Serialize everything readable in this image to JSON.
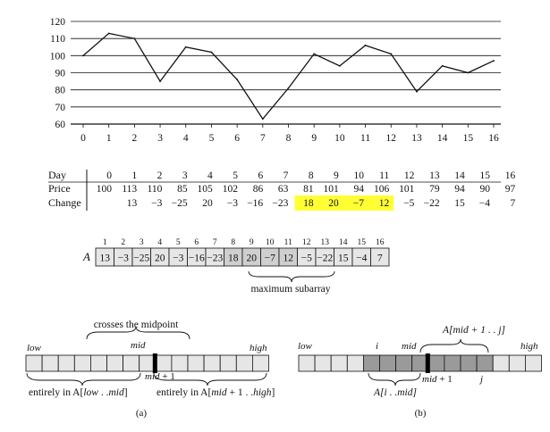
{
  "chart_data": {
    "type": "line",
    "x": [
      0,
      1,
      2,
      3,
      4,
      5,
      6,
      7,
      8,
      9,
      10,
      11,
      12,
      13,
      14,
      15,
      16
    ],
    "values": [
      100,
      113,
      110,
      85,
      105,
      102,
      86,
      63,
      81,
      101,
      94,
      106,
      101,
      79,
      94,
      90,
      97
    ],
    "xlim": [
      0,
      16
    ],
    "ylim": [
      60,
      120
    ],
    "yticks": [
      60,
      70,
      80,
      90,
      100,
      110,
      120
    ],
    "xticks": [
      0,
      1,
      2,
      3,
      4,
      5,
      6,
      7,
      8,
      9,
      10,
      11,
      12,
      13,
      14,
      15,
      16
    ],
    "grid": "horizontal",
    "xlabel": "",
    "ylabel": "",
    "title": ""
  },
  "table": {
    "row_labels": [
      "Day",
      "Price",
      "Change"
    ],
    "days": [
      "0",
      "1",
      "2",
      "3",
      "4",
      "5",
      "6",
      "7",
      "8",
      "9",
      "10",
      "11",
      "12",
      "13",
      "14",
      "15",
      "16"
    ],
    "prices": [
      "100",
      "113",
      "110",
      "85",
      "105",
      "102",
      "86",
      "63",
      "81",
      "101",
      "94",
      "106",
      "101",
      "79",
      "94",
      "90",
      "97"
    ],
    "changes": [
      "",
      "13",
      "−3",
      "−25",
      "20",
      "−3",
      "−16",
      "−23",
      "18",
      "20",
      "−7",
      "12",
      "−5",
      "−22",
      "15",
      "−4",
      "7"
    ],
    "highlight_range": [
      8,
      11
    ],
    "highlight_color": "#ffff33"
  },
  "array_fig": {
    "name": "A",
    "indices": [
      "1",
      "2",
      "3",
      "4",
      "5",
      "6",
      "7",
      "8",
      "9",
      "10",
      "11",
      "12",
      "13",
      "14",
      "15",
      "16"
    ],
    "values": [
      "13",
      "−3",
      "−25",
      "20",
      "−3",
      "−16",
      "−23",
      "18",
      "20",
      "−7",
      "12",
      "−5",
      "−22",
      "15",
      "−4",
      "7"
    ],
    "highlight_range": [
      8,
      11
    ],
    "cell_fill": "#e6e6e6",
    "highlight_fill": "#cfcfcf",
    "caption": "maximum subarray"
  },
  "panel_a": {
    "top_label": "crosses the midpoint",
    "low": "low",
    "mid": "mid",
    "high": "high",
    "mid_plus": "mid + 1",
    "left_label_prefix": "entirely in A[",
    "left_label_low": "low",
    "left_label_sep": " . .",
    "left_label_mid": "mid",
    "left_label_suffix": "]",
    "right_label_prefix": "entirely in A[",
    "right_label_mid": "mid",
    "right_label_rest": " + 1 . .",
    "right_label_high": "high",
    "right_label_suffix": "]",
    "caption": "(a)"
  },
  "panel_b": {
    "low": "low",
    "i": "i",
    "mid": "mid",
    "high": "high",
    "j": "j",
    "mid_plus": "mid + 1",
    "top_label": "A[mid + 1 . . j]",
    "bottom_label": "A[i . .mid]",
    "caption": "(b)",
    "shade": "#9a9a9a"
  },
  "colors": {
    "cell": "#e6e6e6",
    "mid_bar": "#000000"
  }
}
